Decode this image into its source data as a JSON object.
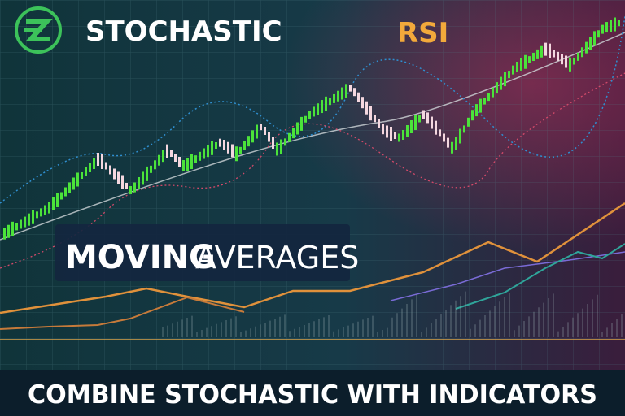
{
  "header": {
    "brand": "STOCHASTIC",
    "indicator": "RSI"
  },
  "overlay": {
    "bold": "MOVING",
    "light": "AVERAGES"
  },
  "footer": {
    "title": "COMBINE STOCHASTIC WITH INDICATORS"
  }
}
